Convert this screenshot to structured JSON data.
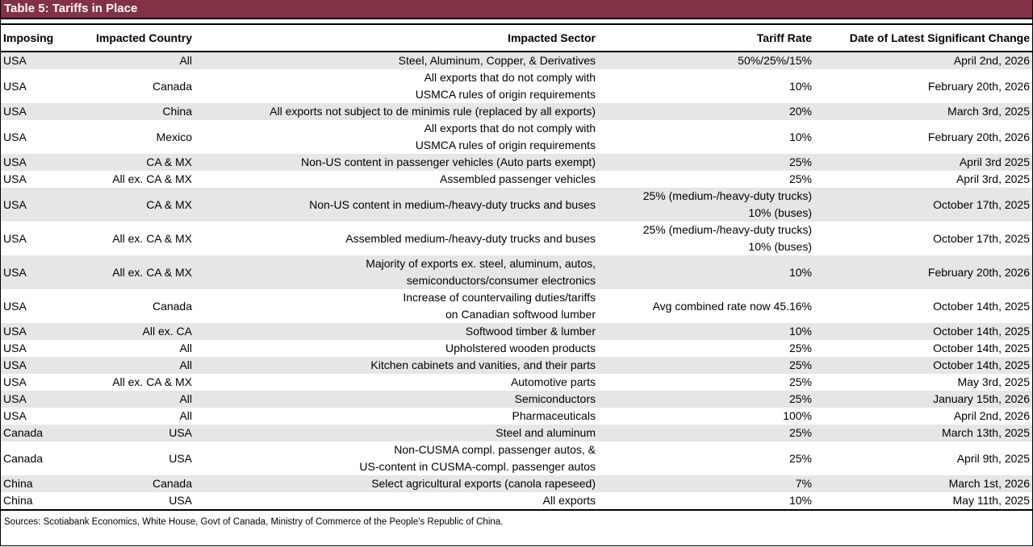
{
  "title": "Table 5: Tariffs in Place",
  "table": {
    "header": [
      "Imposing",
      "Impacted Country",
      "Impacted Sector",
      "Tariff Rate",
      "Date of Latest Significant Change"
    ],
    "rows": [
      [
        "USA",
        "All",
        "Steel, Aluminum, Copper, & Derivatives",
        "50%/25%/15%",
        "April 2nd, 2026"
      ],
      [
        "USA",
        "Canada",
        [
          "All exports that do not comply with",
          "USMCA rules of origin requirements"
        ],
        "10%",
        "February 20th, 2026"
      ],
      [
        "USA",
        "China",
        "All exports not subject to de minimis rule (replaced by all exports)",
        "20%",
        "March 3rd, 2025"
      ],
      [
        "USA",
        "Mexico",
        [
          "All exports that do not comply with",
          "USMCA rules of origin requirements"
        ],
        "10%",
        "February 20th, 2026"
      ],
      [
        "USA",
        "CA & MX",
        "Non-US content in passenger vehicles (Auto parts exempt)",
        "25%",
        "April 3rd 2025"
      ],
      [
        "USA",
        "All ex. CA & MX",
        "Assembled passenger vehicles",
        "25%",
        "April 3rd, 2025"
      ],
      [
        "USA",
        "CA & MX",
        "Non-US content in medium-/heavy-duty trucks and buses",
        [
          "25% (medium-/heavy-duty trucks)",
          "10% (buses)"
        ],
        "October 17th, 2025"
      ],
      [
        "USA",
        "All ex. CA & MX",
        "Assembled medium-/heavy-duty trucks and buses",
        [
          "25% (medium-/heavy-duty trucks)",
          "10% (buses)"
        ],
        "October 17th, 2025"
      ],
      [
        "USA",
        "All ex. CA & MX",
        [
          "Majority of exports ex. steel, aluminum, autos,",
          "semiconductors/consumer electronics"
        ],
        "10%",
        "February 20th, 2026"
      ],
      [
        "USA",
        "Canada",
        [
          "Increase of countervailing duties/tariffs",
          "on Canadian softwood lumber"
        ],
        "Avg combined rate now 45.16%",
        "October 14th, 2025"
      ],
      [
        "USA",
        "All ex. CA",
        "Softwood timber & lumber",
        "10%",
        "October 14th, 2025"
      ],
      [
        "USA",
        "All",
        "Upholstered wooden products",
        "25%",
        "October 14th, 2025"
      ],
      [
        "USA",
        "All",
        "Kitchen cabinets and vanities, and their parts",
        "25%",
        "October 14th, 2025"
      ],
      [
        "USA",
        "All ex. CA & MX",
        "Automotive parts",
        "25%",
        "May 3rd, 2025"
      ],
      [
        "USA",
        "All",
        "Semiconductors",
        "25%",
        "January 15th, 2026"
      ],
      [
        "USA",
        "All",
        "Pharmaceuticals",
        "100%",
        "April 2nd, 2026"
      ],
      [
        "Canada",
        "USA",
        "Steel and aluminum",
        "25%",
        "March 13th, 2025"
      ],
      [
        "Canada",
        "USA",
        [
          "Non-CUSMA compl. passenger autos, &",
          "US-content in CUSMA-compl. passenger autos"
        ],
        "25%",
        "April 9th, 2025"
      ],
      [
        "China",
        "Canada",
        "Select agricultural exports (canola rapeseed)",
        "7%",
        "March 1st, 2026"
      ],
      [
        "China",
        "USA",
        "All exports",
        "10%",
        "May 11th, 2025"
      ]
    ]
  },
  "source": "Sources: Scotiabank Economics, White House, Govt of Canada, Ministry of Commerce of the People's Republic of China."
}
